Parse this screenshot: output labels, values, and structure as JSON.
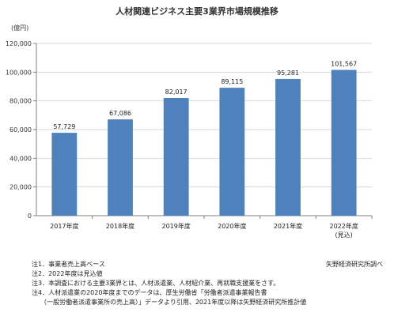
{
  "title": "人材関連ビジネス主要3業界市場規模推移",
  "chart_data": {
    "type": "bar",
    "title": "人材関連ビジネス主要3業界市場規模推移",
    "unit_label": "(億円)",
    "categories": [
      "2017年度",
      "2018年度",
      "2019年度",
      "2020年度",
      "2021年度",
      "2022年度"
    ],
    "category_sublabels": [
      "",
      "",
      "",
      "",
      "",
      "(見込)"
    ],
    "values": [
      57729,
      67086,
      82017,
      89115,
      95281,
      101567
    ],
    "value_labels": [
      "57,729",
      "67,086",
      "82,017",
      "89,115",
      "95,281",
      "101,567"
    ],
    "ylim": [
      0,
      120000
    ],
    "yticks": [
      0,
      20000,
      40000,
      60000,
      80000,
      100000,
      120000
    ],
    "ytick_labels": [
      "0",
      "20,000",
      "40,000",
      "60,000",
      "80,000",
      "100,000",
      "120,000"
    ],
    "grid": true,
    "bar_color": "#4f81bd",
    "grid_color": "#d9d9d9",
    "axis_color": "#7f7f7f"
  },
  "notes": [
    "注1．事業者売上高ベース",
    "注2．2022年度は見込値",
    "注3．本調査における主要3業界とは、人材派遣業、人材紹介業、再就職支援業をさす。",
    "注4．人材派遣業の2020年度までのデータは、厚生労働省「労働者派遣事業報告書",
    "（一般労働者派遣事業所の売上高）」データより引用、2021年度以降は矢野経済研究所推計値"
  ],
  "source": "矢野経済研究所調べ"
}
